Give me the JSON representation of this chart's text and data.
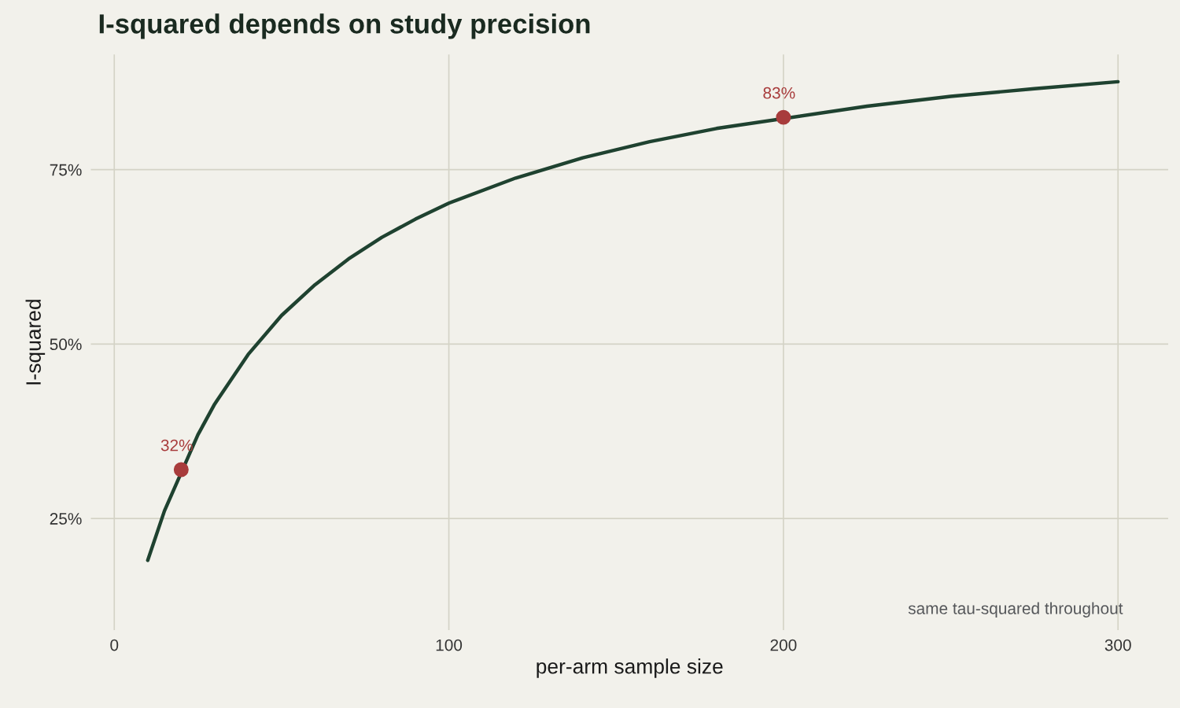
{
  "chart_data": {
    "type": "line",
    "title": "I-squared depends on study precision",
    "xlabel": "per-arm sample size",
    "ylabel": "I-squared",
    "series": [
      {
        "color": "#1f4230",
        "x": [
          10,
          15,
          25,
          30,
          40,
          50,
          60,
          70,
          80,
          90,
          100,
          120,
          140,
          160,
          180,
          225,
          250,
          275,
          300
        ],
        "values": [
          19.0,
          26.1,
          37.0,
          41.4,
          48.5,
          54.1,
          58.5,
          62.2,
          65.3,
          67.9,
          70.2,
          73.8,
          76.7,
          79.0,
          80.9,
          84.1,
          85.5,
          86.6,
          87.6
        ]
      },
      {
        "type": "scatter",
        "color": "#a83c3c",
        "marker": "circle",
        "x": [
          20,
          200
        ],
        "values": [
          32.0,
          82.5
        ],
        "value_labels": [
          "32%",
          "83%"
        ]
      }
    ],
    "xlim": [
      -7,
      315
    ],
    "xticks": [
      0,
      100,
      200,
      300
    ],
    "ylim": [
      9,
      91.5
    ],
    "yticks": [
      {
        "value": 25,
        "label": "25%"
      },
      {
        "value": 50,
        "label": "50%"
      },
      {
        "value": 75,
        "label": "75%"
      }
    ],
    "grid": true,
    "annotations": [
      "same tau-squared throughout"
    ]
  }
}
